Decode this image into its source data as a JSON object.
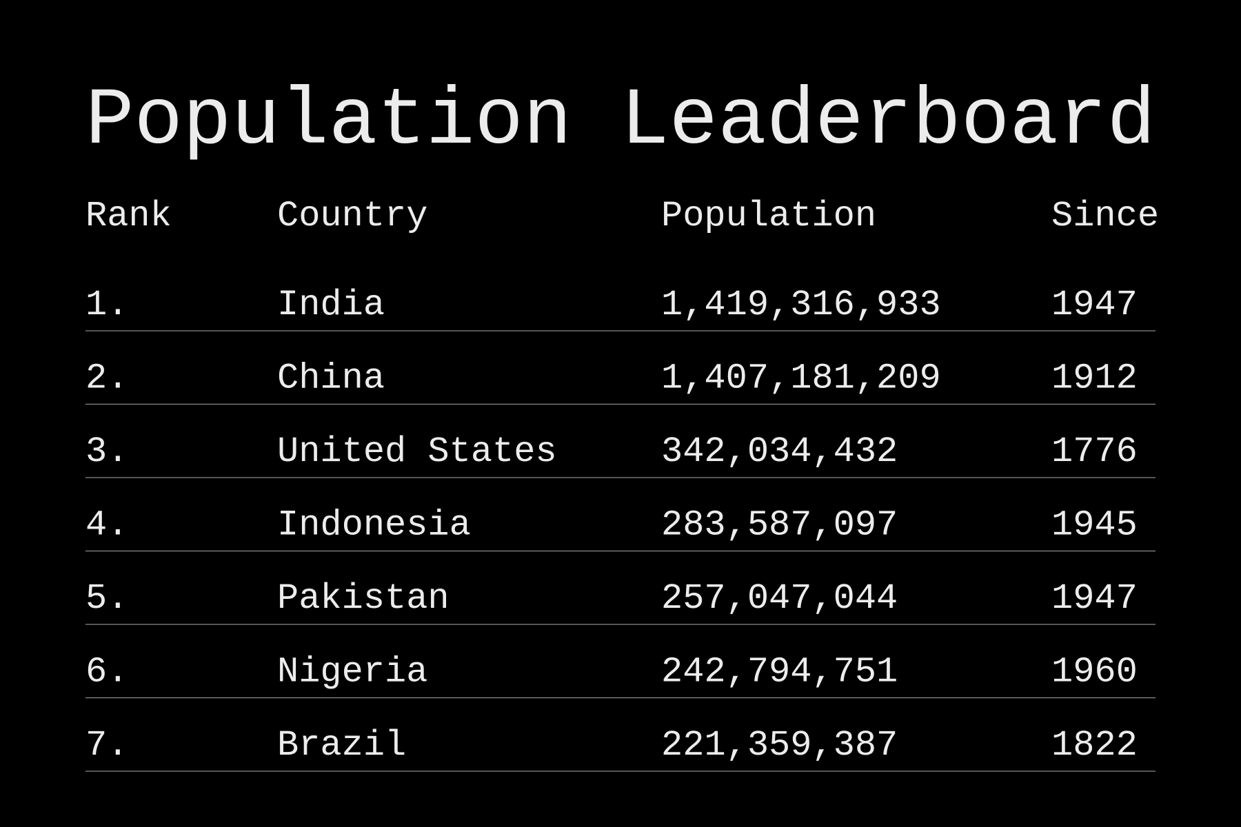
{
  "header": {
    "title": "Population Leaderboard"
  },
  "table": {
    "columns": [
      "Rank",
      "Country",
      "Population",
      "Since"
    ],
    "rows": [
      [
        "1.",
        "India",
        "1,419,316,933",
        "1947"
      ],
      [
        "2.",
        "China",
        "1,407,181,209",
        "1912"
      ],
      [
        "3.",
        "United States",
        "342,034,432",
        "1776"
      ],
      [
        "4.",
        "Indonesia",
        "283,587,097",
        "1945"
      ],
      [
        "5.",
        "Pakistan",
        "257,047,044",
        "1947"
      ],
      [
        "6.",
        "Nigeria",
        "242,794,751",
        "1960"
      ],
      [
        "7.",
        "Brazil",
        "221,359,387",
        "1822"
      ]
    ]
  }
}
